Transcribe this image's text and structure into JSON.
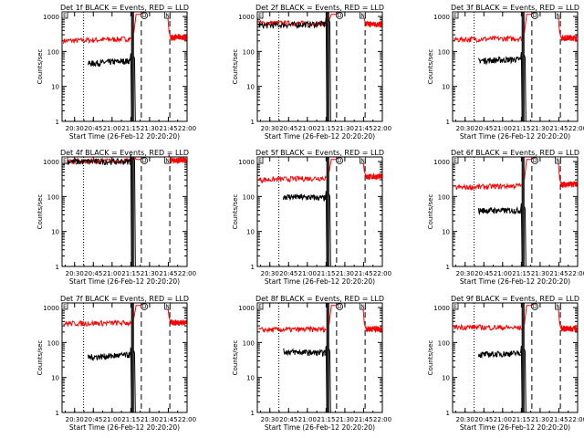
{
  "chart_data": [
    {
      "type": "line",
      "title": "Det 1f BLACK = Events, RED = LLD",
      "xlabel": "Start Time (26-Feb-12 20:20:20)",
      "ylabel": "Counts/sec",
      "x_ticks": [
        "20:30",
        "20:45",
        "21:00",
        "21:15",
        "21:30",
        "21:45",
        "22:00"
      ],
      "y_ticks": [
        "1",
        "10",
        "100",
        "1000"
      ],
      "ylim": [
        1,
        1200
      ],
      "y_scale": "log",
      "series": [
        {
          "name": "Events",
          "color": "#000000",
          "start": [
            20.68,
            45
          ],
          "end": [
            21.28,
            55
          ]
        },
        {
          "name": "LLD",
          "color": "#ff0000",
          "start": [
            20.35,
            200
          ],
          "end": [
            22.0,
            260
          ]
        }
      ],
      "markers": [
        "E",
        "D",
        "N"
      ]
    },
    {
      "type": "line",
      "title": "Det 2f BLACK = Events, RED = LLD",
      "xlabel": "Start Time (26-Feb-12 20:20:20)",
      "ylabel": "Counts/sec",
      "x_ticks": [
        "20:30",
        "20:45",
        "21:00",
        "21:15",
        "21:30",
        "21:45",
        "22:00"
      ],
      "y_ticks": [
        "1",
        "10",
        "100",
        "1000"
      ],
      "ylim": [
        1,
        1200
      ],
      "y_scale": "log",
      "series": [
        {
          "name": "Events",
          "color": "#000000",
          "start": [
            20.35,
            550
          ],
          "end": [
            21.28,
            620
          ]
        },
        {
          "name": "LLD",
          "color": "#ff0000",
          "start": [
            20.35,
            650
          ],
          "end": [
            22.0,
            600
          ]
        }
      ],
      "markers": [
        "E",
        "D",
        "N"
      ]
    },
    {
      "type": "line",
      "title": "Det 3f BLACK = Events, RED = LLD",
      "xlabel": "Start Time (26-Feb-12 20:20:20)",
      "ylabel": "Counts/sec",
      "x_ticks": [
        "20:30",
        "20:45",
        "21:00",
        "21:15",
        "21:30",
        "21:45",
        "22:00"
      ],
      "y_ticks": [
        "1",
        "10",
        "100",
        "1000"
      ],
      "ylim": [
        1,
        1200
      ],
      "y_scale": "log",
      "series": [
        {
          "name": "Events",
          "color": "#000000",
          "start": [
            20.68,
            55
          ],
          "end": [
            21.28,
            60
          ]
        },
        {
          "name": "LLD",
          "color": "#ff0000",
          "start": [
            20.35,
            220
          ],
          "end": [
            22.0,
            250
          ]
        }
      ],
      "markers": [
        "E",
        "D",
        "N"
      ]
    },
    {
      "type": "line",
      "title": "Det 4f BLACK = Events, RED = LLD",
      "xlabel": "Start Time (26-Feb-12 20:20:20)",
      "ylabel": "Counts/sec",
      "x_ticks": [
        "20:30",
        "20:45",
        "21:00",
        "21:15",
        "21:30",
        "21:45",
        "22:00"
      ],
      "y_ticks": [
        "1",
        "10",
        "100",
        "1000"
      ],
      "ylim": [
        1,
        1200
      ],
      "y_scale": "log",
      "series": [
        {
          "name": "Events",
          "color": "#000000",
          "start": [
            20.35,
            1000
          ],
          "end": [
            21.28,
            1000
          ]
        },
        {
          "name": "LLD",
          "color": "#ff0000",
          "start": [
            20.35,
            1000
          ],
          "end": [
            22.0,
            1100
          ]
        }
      ],
      "markers": [
        "E",
        "D",
        "N"
      ]
    },
    {
      "type": "line",
      "title": "Det 5f BLACK = Events, RED = LLD",
      "xlabel": "Start Time (26-Feb-12 20:20:20)",
      "ylabel": "Counts/sec",
      "x_ticks": [
        "20:30",
        "20:45",
        "21:00",
        "21:15",
        "21:30",
        "21:45",
        "22:00"
      ],
      "y_ticks": [
        "1",
        "10",
        "100",
        "1000"
      ],
      "ylim": [
        1,
        1200
      ],
      "y_scale": "log",
      "series": [
        {
          "name": "Events",
          "color": "#000000",
          "start": [
            20.68,
            100
          ],
          "end": [
            21.28,
            90
          ]
        },
        {
          "name": "LLD",
          "color": "#ff0000",
          "start": [
            20.35,
            300
          ],
          "end": [
            22.0,
            380
          ]
        }
      ],
      "markers": [
        "E",
        "D",
        "N"
      ]
    },
    {
      "type": "line",
      "title": "Det 6f BLACK = Events, RED = LLD",
      "xlabel": "Start Time (26-Feb-12 20:20:20)",
      "ylabel": "Counts/sec",
      "x_ticks": [
        "20:30",
        "20:45",
        "21:00",
        "21:15",
        "21:30",
        "21:45",
        "22:00"
      ],
      "y_ticks": [
        "1",
        "10",
        "100",
        "1000"
      ],
      "ylim": [
        1,
        1200
      ],
      "y_scale": "log",
      "series": [
        {
          "name": "Events",
          "color": "#000000",
          "start": [
            20.68,
            40
          ],
          "end": [
            21.28,
            40
          ]
        },
        {
          "name": "LLD",
          "color": "#ff0000",
          "start": [
            20.35,
            180
          ],
          "end": [
            22.0,
            230
          ]
        }
      ],
      "markers": [
        "E",
        "D",
        "N"
      ]
    },
    {
      "type": "line",
      "title": "Det 7f BLACK = Events, RED = LLD",
      "xlabel": "Start Time (26-Feb-12 20:20:20)",
      "ylabel": "Counts/sec",
      "x_ticks": [
        "20:30",
        "20:45",
        "21:00",
        "21:15",
        "21:30",
        "21:45",
        "22:00"
      ],
      "y_ticks": [
        "1",
        "10",
        "100",
        "1000"
      ],
      "ylim": [
        1,
        1200
      ],
      "y_scale": "log",
      "series": [
        {
          "name": "Events",
          "color": "#000000",
          "start": [
            20.68,
            38
          ],
          "end": [
            21.28,
            45
          ]
        },
        {
          "name": "LLD",
          "color": "#ff0000",
          "start": [
            20.35,
            350
          ],
          "end": [
            22.0,
            380
          ]
        }
      ],
      "markers": [
        "E",
        "D",
        "N"
      ]
    },
    {
      "type": "line",
      "title": "Det 8f BLACK = Events, RED = LLD",
      "xlabel": "Start Time (26-Feb-12 20:20:20)",
      "ylabel": "Counts/sec",
      "x_ticks": [
        "20:30",
        "20:45",
        "21:00",
        "21:15",
        "21:30",
        "21:45",
        "22:00"
      ],
      "y_ticks": [
        "1",
        "10",
        "100",
        "1000"
      ],
      "ylim": [
        1,
        1200
      ],
      "y_scale": "log",
      "series": [
        {
          "name": "Events",
          "color": "#000000",
          "start": [
            20.68,
            55
          ],
          "end": [
            21.28,
            50
          ]
        },
        {
          "name": "LLD",
          "color": "#ff0000",
          "start": [
            20.35,
            230
          ],
          "end": [
            22.0,
            250
          ]
        }
      ],
      "markers": [
        "E",
        "D",
        "N"
      ]
    },
    {
      "type": "line",
      "title": "Det 9f BLACK = Events, RED = LLD",
      "xlabel": "Start Time (26-Feb-12 20:20:20)",
      "ylabel": "Counts/sec",
      "x_ticks": [
        "20:30",
        "20:45",
        "21:00",
        "21:15",
        "21:30",
        "21:45",
        "22:00"
      ],
      "y_ticks": [
        "1",
        "10",
        "100",
        "1000"
      ],
      "ylim": [
        1,
        1200
      ],
      "y_scale": "log",
      "series": [
        {
          "name": "Events",
          "color": "#000000",
          "start": [
            20.68,
            45
          ],
          "end": [
            21.28,
            50
          ]
        },
        {
          "name": "LLD",
          "color": "#ff0000",
          "start": [
            20.35,
            280
          ],
          "end": [
            22.0,
            250
          ]
        }
      ],
      "markers": [
        "E",
        "D",
        "N"
      ]
    }
  ]
}
